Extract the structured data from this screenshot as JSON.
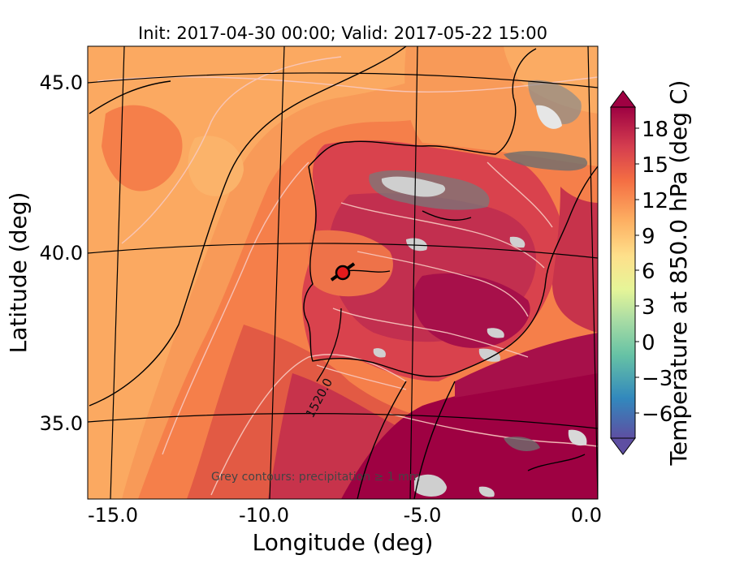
{
  "title": "Init: 2017-04-30 00:00; Valid: 2017-05-22 15:00",
  "axes": {
    "xlabel": "Longitude (deg)",
    "ylabel": "Latitude (deg)",
    "xticks": [
      "-15.0",
      "-10.0",
      "-5.0",
      "0.0"
    ],
    "yticks": [
      "45.0",
      "40.0",
      "35.0"
    ]
  },
  "colorbar": {
    "label": "Temperature at 850.0 hPa (deg C)",
    "ticks": [
      "18",
      "15",
      "12",
      "9",
      "6",
      "3",
      "0",
      "−3",
      "−6"
    ],
    "range": [
      -8,
      20
    ],
    "colors": [
      "#5e4fa2",
      "#3288bd",
      "#66c2a5",
      "#abdda4",
      "#e6f598",
      "#fee08b",
      "#fdae61",
      "#f46d43",
      "#d53e4f",
      "#9e0142"
    ]
  },
  "contour_label": "1520.0",
  "annotation": "Grey contours: precipitation ≥ 1 mm",
  "marker": {
    "name": "site-marker",
    "color": "#e41a1c"
  }
}
